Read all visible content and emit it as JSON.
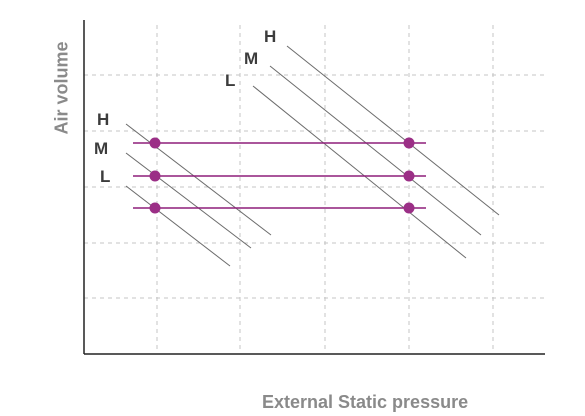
{
  "axes": {
    "ylabel": "Air volume",
    "xlabel": "External Static pressure"
  },
  "fan_speed_labels": {
    "left_group": [
      "H",
      "M",
      "L"
    ],
    "right_group": [
      "H",
      "M",
      "L"
    ]
  },
  "colors": {
    "axis": "#222222",
    "grid": "#c4c4c4",
    "fan_curve": "#6b6b6b",
    "system_line": "#8e1f7a",
    "operating_point": "#9b2f86",
    "label": "#3c3c3c",
    "axis_title": "#8a8a8a"
  },
  "grid": true
}
